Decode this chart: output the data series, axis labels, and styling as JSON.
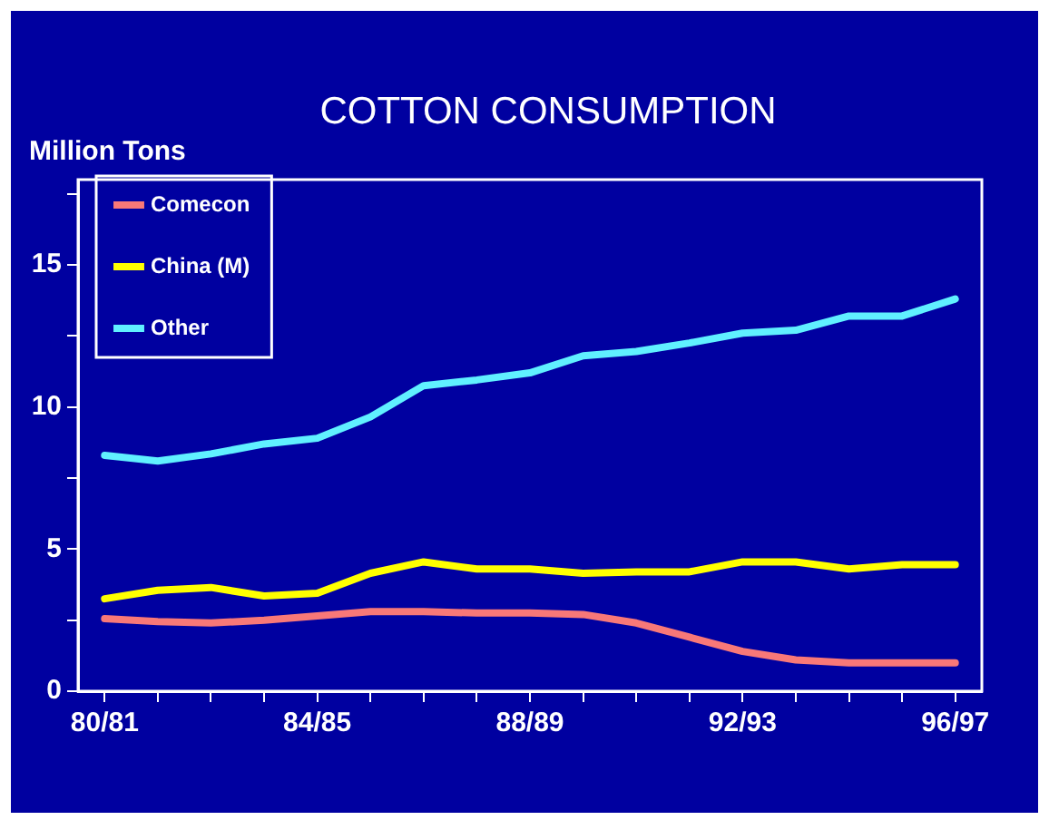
{
  "chart_data": {
    "type": "line",
    "title": "COTTON CONSUMPTION",
    "ylabel": "Million Tons",
    "categories": [
      "80/81",
      null,
      null,
      null,
      "84/85",
      null,
      null,
      null,
      "88/89",
      null,
      null,
      null,
      "92/93",
      null,
      null,
      null,
      "96/97"
    ],
    "series": [
      {
        "name": "Comecon",
        "color": "#f87878",
        "values": [
          2.55,
          2.45,
          2.4,
          2.5,
          2.65,
          2.8,
          2.8,
          2.75,
          2.75,
          2.7,
          2.4,
          1.9,
          1.4,
          1.1,
          1.0,
          1.0,
          1.0
        ]
      },
      {
        "name": "China (M)",
        "color": "#ffff00",
        "values": [
          3.25,
          3.55,
          3.65,
          3.35,
          3.45,
          4.15,
          4.55,
          4.3,
          4.3,
          4.15,
          4.2,
          4.2,
          4.55,
          4.55,
          4.3,
          4.45,
          4.45
        ]
      },
      {
        "name": "Other",
        "color": "#60f0ff",
        "values": [
          8.3,
          8.1,
          8.35,
          8.7,
          8.9,
          9.65,
          10.75,
          10.95,
          11.2,
          11.8,
          11.95,
          12.25,
          12.6,
          12.7,
          13.2,
          13.2,
          13.8
        ]
      }
    ],
    "ylim": [
      0,
      18
    ],
    "yticks": [
      0,
      {
        "value": 2.5,
        "label": null
      },
      5,
      {
        "value": 7.5,
        "label": null
      },
      10,
      {
        "value": 12.5,
        "label": null
      },
      15,
      {
        "value": 17.5,
        "label": null
      }
    ],
    "grid": false,
    "legend": "top",
    "marker": "none",
    "line_style": "solid"
  }
}
